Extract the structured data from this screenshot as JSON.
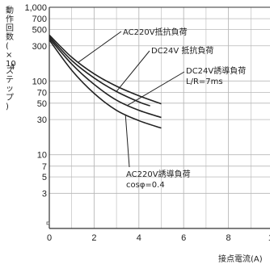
{
  "chart_data": {
    "type": "line",
    "title": "",
    "xlabel": "接点電流(A)",
    "ylabel": [
      "動",
      "作",
      "回",
      "数",
      "(",
      "×",
      "10",
      "4",
      "ス",
      "テ",
      "ッ",
      "プ",
      ")"
    ],
    "x_scale": "linear",
    "y_scale": "log",
    "xlim": [
      0,
      10
    ],
    "ylim": [
      1,
      1000
    ],
    "x_ticks": [
      {
        "value": 0,
        "label": "0"
      },
      {
        "value": 2,
        "label": "2"
      },
      {
        "value": 4,
        "label": "4"
      },
      {
        "value": 6,
        "label": "6"
      },
      {
        "value": 8,
        "label": "8"
      },
      {
        "value": 10,
        "label": "10"
      }
    ],
    "y_ticks": [
      {
        "value": 1000,
        "label": "1,000"
      },
      {
        "value": 700,
        "label": "700"
      },
      {
        "value": 500,
        "label": "500"
      },
      {
        "value": 300,
        "label": "300"
      },
      {
        "value": 100,
        "label": "100"
      },
      {
        "value": 70,
        "label": "70"
      },
      {
        "value": 50,
        "label": "50"
      },
      {
        "value": 30,
        "label": "30"
      },
      {
        "value": 10,
        "label": "10"
      },
      {
        "value": 7,
        "label": "7"
      },
      {
        "value": 5,
        "label": "5"
      },
      {
        "value": 3,
        "label": "3"
      }
    ],
    "y_gridlines": [
      1000,
      700,
      500,
      300,
      100,
      70,
      50,
      30,
      10,
      7,
      5,
      3
    ],
    "grid": true,
    "series": [
      {
        "name": "AC220V抵抗負荷",
        "x": [
          0,
          1,
          2,
          3,
          4,
          5
        ],
        "y": [
          420,
          210,
          125,
          85,
          63,
          49
        ]
      },
      {
        "name": "DC24V 抵抗負荷",
        "x": [
          0,
          1,
          2,
          3,
          4,
          4.5
        ],
        "y": [
          400,
          190,
          110,
          72,
          52,
          46
        ]
      },
      {
        "name": "DC24V誘導負荷 L/R=7ms",
        "x": [
          0,
          1,
          2,
          3,
          4,
          5
        ],
        "y": [
          380,
          170,
          90,
          55,
          40,
          32
        ]
      },
      {
        "name": "AC220V誘導負荷 cosφ=0.4",
        "x": [
          0,
          1,
          2,
          3,
          4,
          5
        ],
        "y": [
          360,
          140,
          68,
          40,
          29,
          23
        ]
      }
    ],
    "annotations": [
      {
        "lines": [
          "AC220V抵抗負荷"
        ],
        "series_index": 0
      },
      {
        "lines": [
          "DC24V 抵抗負荷"
        ],
        "series_index": 1
      },
      {
        "lines": [
          "DC24V誘導負荷",
          "L/R=7ms"
        ],
        "series_index": 2
      },
      {
        "lines": [
          "AC220V誘導負荷",
          "cosφ=0.4"
        ],
        "series_index": 3
      }
    ],
    "colors": {
      "line": "#222222",
      "grid": "#b8b8b8",
      "axis": "#333333",
      "text": "#222222"
    }
  }
}
